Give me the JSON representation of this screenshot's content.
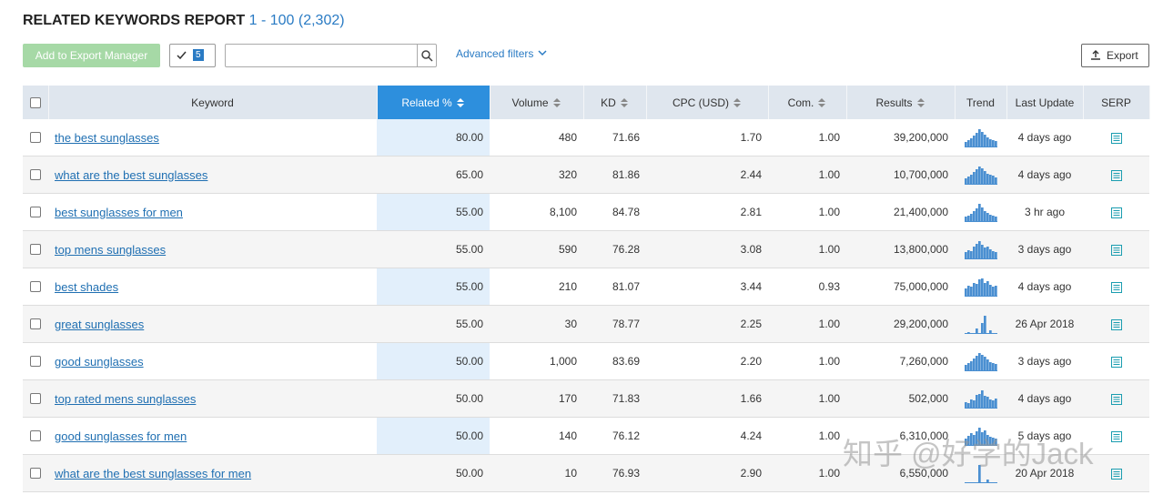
{
  "header": {
    "title": "RELATED KEYWORDS REPORT",
    "range": "1 - 100 (2,302)"
  },
  "toolbar": {
    "export_manager": "Add to Export Manager",
    "selected_count": "5",
    "advanced_filters": "Advanced filters",
    "export": "Export"
  },
  "table": {
    "columns": [
      "Keyword",
      "Related %",
      "Volume",
      "KD",
      "CPC (USD)",
      "Com.",
      "Results",
      "Trend",
      "Last Update",
      "SERP"
    ],
    "rows": [
      {
        "keyword": "the best sunglasses",
        "related": "80.00",
        "volume": "480",
        "kd": "71.66",
        "cpc": "1.70",
        "com": "1.00",
        "results": "39,200,000",
        "last_update": "4 days ago",
        "trend": [
          30,
          40,
          50,
          65,
          80,
          100,
          85,
          70,
          55,
          45,
          40,
          35
        ]
      },
      {
        "keyword": "what are the best sunglasses",
        "related": "65.00",
        "volume": "320",
        "kd": "81.86",
        "cpc": "2.44",
        "com": "1.00",
        "results": "10,700,000",
        "last_update": "4 days ago",
        "trend": [
          35,
          45,
          55,
          70,
          85,
          100,
          90,
          75,
          60,
          55,
          50,
          40
        ]
      },
      {
        "keyword": "best sunglasses for men",
        "related": "55.00",
        "volume": "8,100",
        "kd": "84.78",
        "cpc": "2.81",
        "com": "1.00",
        "results": "21,400,000",
        "last_update": "3 hr ago",
        "trend": [
          30,
          35,
          45,
          60,
          75,
          100,
          80,
          60,
          50,
          40,
          35,
          30
        ]
      },
      {
        "keyword": "top mens sunglasses",
        "related": "55.00",
        "volume": "590",
        "kd": "76.28",
        "cpc": "3.08",
        "com": "1.00",
        "results": "13,800,000",
        "last_update": "3 days ago",
        "trend": [
          40,
          50,
          45,
          70,
          85,
          100,
          80,
          65,
          70,
          55,
          45,
          40
        ]
      },
      {
        "keyword": "best shades",
        "related": "55.00",
        "volume": "210",
        "kd": "81.07",
        "cpc": "3.44",
        "com": "0.93",
        "results": "75,000,000",
        "last_update": "4 days ago",
        "trend": [
          45,
          60,
          55,
          75,
          70,
          95,
          100,
          75,
          85,
          65,
          55,
          60
        ]
      },
      {
        "keyword": "great sunglasses",
        "related": "55.00",
        "volume": "30",
        "kd": "78.77",
        "cpc": "2.25",
        "com": "1.00",
        "results": "29,200,000",
        "last_update": "26 Apr 2018",
        "trend": [
          0,
          10,
          0,
          0,
          30,
          0,
          60,
          100,
          0,
          20,
          0,
          0
        ]
      },
      {
        "keyword": "good sunglasses",
        "related": "50.00",
        "volume": "1,000",
        "kd": "83.69",
        "cpc": "2.20",
        "com": "1.00",
        "results": "7,260,000",
        "last_update": "3 days ago",
        "trend": [
          35,
          45,
          55,
          70,
          85,
          100,
          90,
          80,
          65,
          50,
          45,
          40
        ]
      },
      {
        "keyword": "top rated mens sunglasses",
        "related": "50.00",
        "volume": "170",
        "kd": "71.83",
        "cpc": "1.66",
        "com": "1.00",
        "results": "502,000",
        "last_update": "4 days ago",
        "trend": [
          35,
          30,
          50,
          45,
          75,
          80,
          100,
          70,
          65,
          50,
          45,
          55
        ]
      },
      {
        "keyword": "good sunglasses for men",
        "related": "50.00",
        "volume": "140",
        "kd": "76.12",
        "cpc": "4.24",
        "com": "1.00",
        "results": "6,310,000",
        "last_update": "5 days ago",
        "trend": [
          40,
          55,
          70,
          60,
          80,
          100,
          75,
          85,
          60,
          50,
          45,
          40
        ]
      },
      {
        "keyword": "what are the best sunglasses for men",
        "related": "50.00",
        "volume": "10",
        "kd": "76.93",
        "cpc": "2.90",
        "com": "1.00",
        "results": "6,550,000",
        "last_update": "20 Apr 2018",
        "trend": [
          0,
          0,
          0,
          0,
          0,
          100,
          0,
          0,
          20,
          0,
          0,
          0
        ]
      }
    ]
  },
  "watermark": "知乎 @好学的Jack"
}
